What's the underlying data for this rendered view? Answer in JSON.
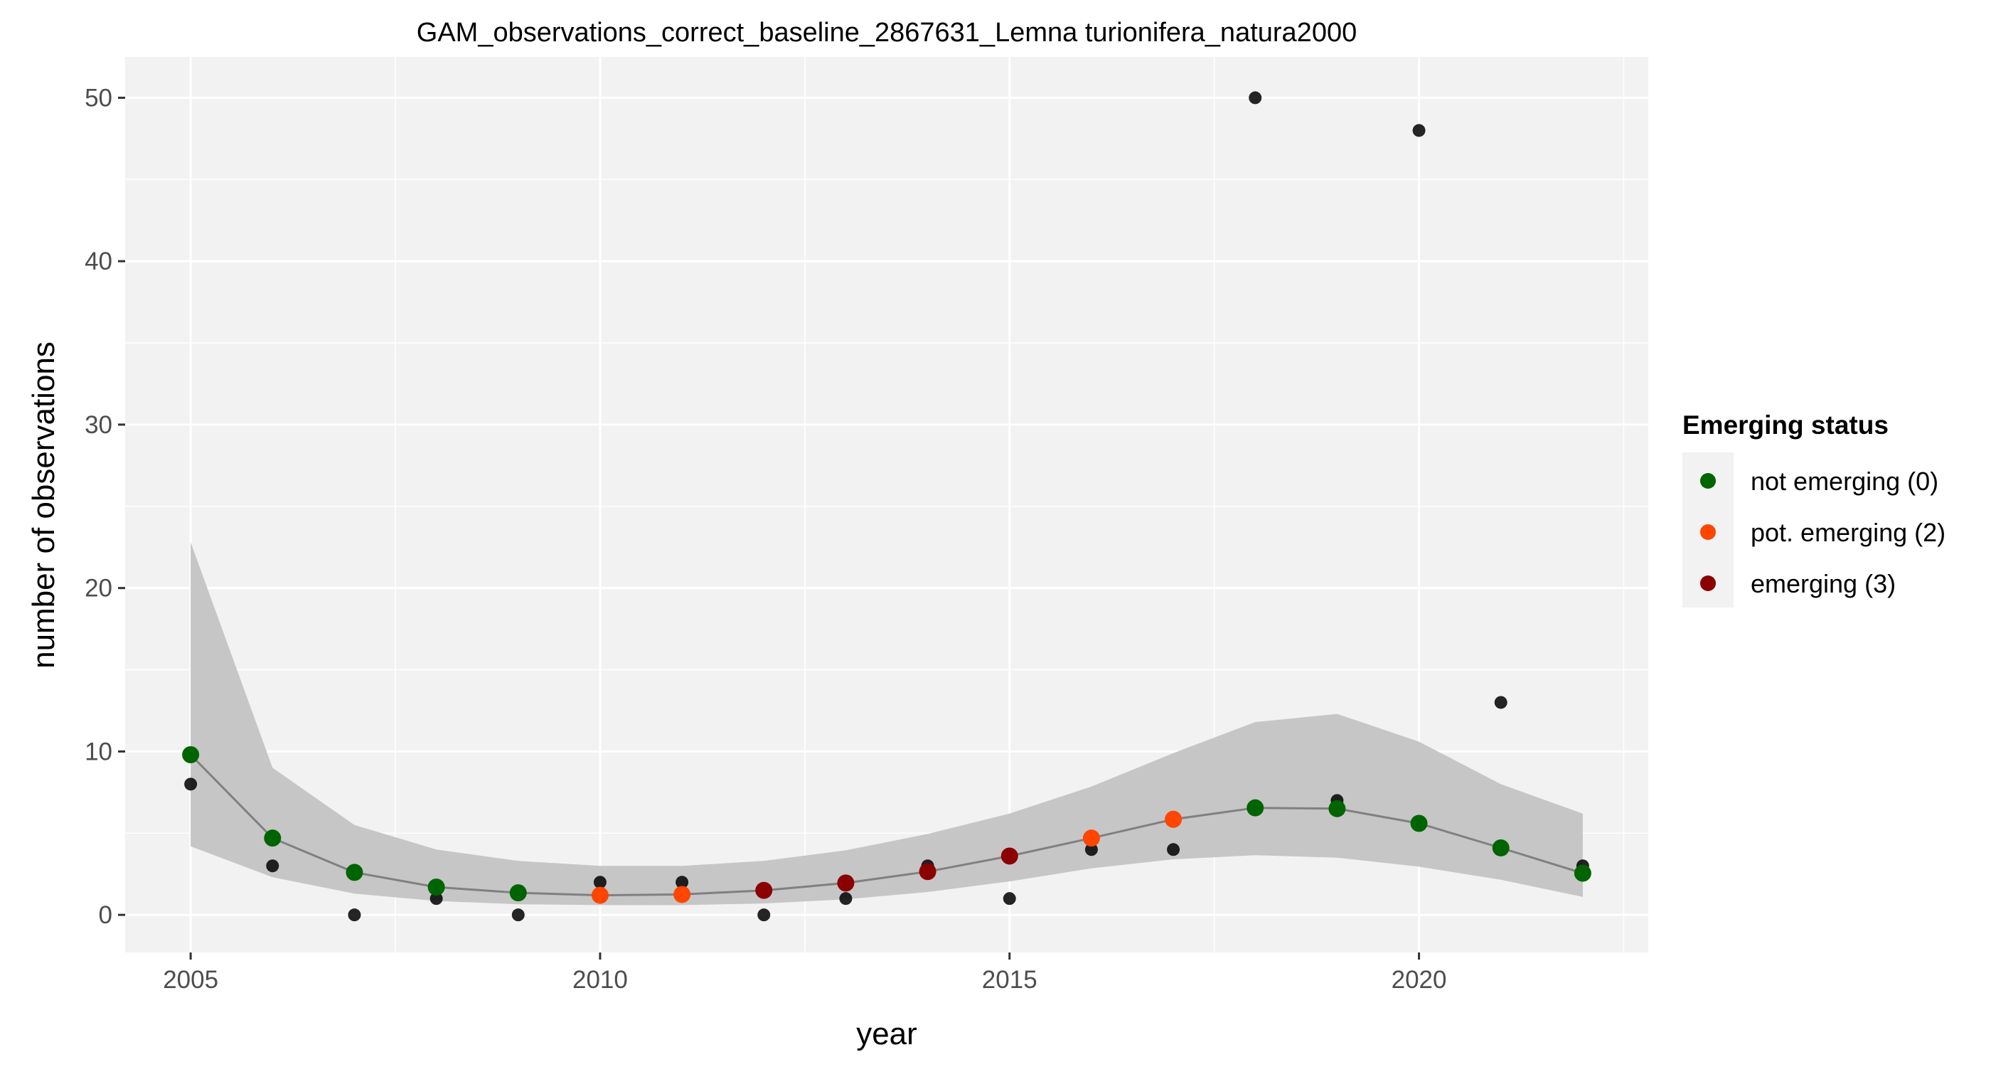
{
  "chart_data": {
    "type": "scatter",
    "title": "GAM_observations_correct_baseline_2867631_Lemna turionifera_natura2000",
    "xlabel": "year",
    "ylabel": "number of observations",
    "xlim": [
      2004.2,
      2022.8
    ],
    "ylim": [
      -2.3,
      52.5
    ],
    "x_ticks": [
      2005,
      2010,
      2015,
      2020
    ],
    "y_ticks": [
      0,
      10,
      20,
      30,
      40,
      50
    ],
    "grid": true,
    "legend_position": "right",
    "legend_title": "Emerging status",
    "observed": {
      "color": "#000000",
      "x": [
        2005,
        2006,
        2007,
        2008,
        2009,
        2010,
        2011,
        2012,
        2013,
        2014,
        2015,
        2016,
        2017,
        2018,
        2019,
        2020,
        2021,
        2022
      ],
      "y": [
        8,
        3,
        0,
        1,
        0,
        2,
        2,
        0,
        1,
        3,
        1,
        4,
        4,
        50,
        7,
        48,
        13,
        3
      ]
    },
    "fit": {
      "color": "#808080",
      "ribbon_color": "#c6c6c6",
      "x": [
        2005,
        2006,
        2007,
        2008,
        2009,
        2010,
        2011,
        2012,
        2013,
        2014,
        2015,
        2016,
        2017,
        2018,
        2019,
        2020,
        2021,
        2022
      ],
      "y": [
        9.8,
        4.7,
        2.6,
        1.7,
        1.35,
        1.2,
        1.25,
        1.5,
        1.95,
        2.65,
        3.6,
        4.7,
        5.85,
        6.55,
        6.5,
        5.6,
        4.1,
        2.55
      ],
      "lower": [
        4.2,
        2.3,
        1.3,
        0.85,
        0.65,
        0.6,
        0.6,
        0.7,
        0.95,
        1.4,
        2.05,
        2.85,
        3.4,
        3.65,
        3.5,
        2.95,
        2.15,
        1.1
      ],
      "upper": [
        22.8,
        9.0,
        5.5,
        4.0,
        3.3,
        3.0,
        3.0,
        3.3,
        3.95,
        4.95,
        6.2,
        7.85,
        9.9,
        11.8,
        12.3,
        10.6,
        8.0,
        6.2
      ],
      "status": [
        0,
        0,
        0,
        0,
        0,
        2,
        2,
        3,
        3,
        3,
        3,
        2,
        2,
        0,
        0,
        0,
        0,
        0
      ]
    },
    "series": [
      {
        "name": "not emerging (0)",
        "code": 0,
        "color": "#006400"
      },
      {
        "name": "pot. emerging (2)",
        "code": 2,
        "color": "#ff4500"
      },
      {
        "name": "emerging (3)",
        "code": 3,
        "color": "#8b0000"
      }
    ]
  }
}
